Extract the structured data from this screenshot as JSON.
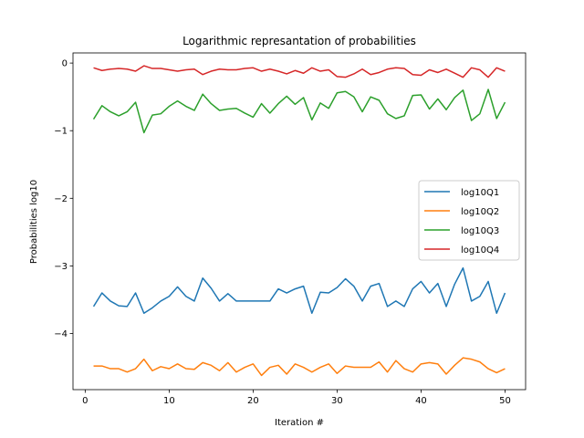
{
  "chart_data": {
    "type": "line",
    "title": "Logarithmic represantation of probabilities",
    "xlabel": "Iteration #",
    "ylabel": "Probabilities log10",
    "xlim": [
      -1.45,
      52.45
    ],
    "ylim": [
      -4.83,
      0.15
    ],
    "xticks": [
      0,
      10,
      20,
      30,
      40,
      50
    ],
    "yticks": [
      0,
      -1,
      -2,
      -3,
      -4
    ],
    "ytick_labels": [
      "0",
      "−1",
      "−2",
      "−3",
      "−4"
    ],
    "grid": false,
    "legend_position": "center-right",
    "x": [
      1,
      2,
      3,
      4,
      5,
      6,
      7,
      8,
      9,
      10,
      11,
      12,
      13,
      14,
      15,
      16,
      17,
      18,
      19,
      20,
      21,
      22,
      23,
      24,
      25,
      26,
      27,
      28,
      29,
      30,
      31,
      32,
      33,
      34,
      35,
      36,
      37,
      38,
      39,
      40,
      41,
      42,
      43,
      44,
      45,
      46,
      47,
      48,
      49,
      50
    ],
    "series": [
      {
        "name": "log10Q1",
        "color": "#1f77b4",
        "values": [
          -3.6,
          -3.4,
          -3.52,
          -3.59,
          -3.6,
          -3.4,
          -3.7,
          -3.62,
          -3.52,
          -3.45,
          -3.31,
          -3.45,
          -3.52,
          -3.18,
          -3.33,
          -3.52,
          -3.41,
          -3.52,
          -3.52,
          -3.52,
          -3.52,
          -3.52,
          -3.34,
          -3.4,
          -3.34,
          -3.3,
          -3.7,
          -3.39,
          -3.4,
          -3.32,
          -3.19,
          -3.3,
          -3.52,
          -3.3,
          -3.26,
          -3.6,
          -3.52,
          -3.6,
          -3.34,
          -3.23,
          -3.4,
          -3.26,
          -3.6,
          -3.27,
          -3.03,
          -3.52,
          -3.45,
          -3.23,
          -3.7,
          -3.4
        ]
      },
      {
        "name": "log10Q2",
        "color": "#ff7f0e",
        "values": [
          -4.48,
          -4.48,
          -4.52,
          -4.52,
          -4.57,
          -4.52,
          -4.38,
          -4.55,
          -4.49,
          -4.52,
          -4.45,
          -4.52,
          -4.53,
          -4.43,
          -4.47,
          -4.55,
          -4.43,
          -4.57,
          -4.5,
          -4.45,
          -4.62,
          -4.5,
          -4.47,
          -4.6,
          -4.45,
          -4.5,
          -4.57,
          -4.5,
          -4.45,
          -4.59,
          -4.48,
          -4.5,
          -4.5,
          -4.5,
          -4.42,
          -4.57,
          -4.4,
          -4.52,
          -4.57,
          -4.45,
          -4.43,
          -4.45,
          -4.6,
          -4.47,
          -4.36,
          -4.38,
          -4.42,
          -4.52,
          -4.58,
          -4.52
        ]
      },
      {
        "name": "log10Q3",
        "color": "#2ca02c",
        "values": [
          -0.83,
          -0.63,
          -0.72,
          -0.78,
          -0.72,
          -0.58,
          -1.03,
          -0.77,
          -0.75,
          -0.64,
          -0.56,
          -0.64,
          -0.7,
          -0.46,
          -0.6,
          -0.7,
          -0.68,
          -0.67,
          -0.74,
          -0.8,
          -0.6,
          -0.74,
          -0.6,
          -0.49,
          -0.61,
          -0.51,
          -0.84,
          -0.59,
          -0.67,
          -0.44,
          -0.42,
          -0.5,
          -0.72,
          -0.5,
          -0.55,
          -0.75,
          -0.82,
          -0.78,
          -0.48,
          -0.47,
          -0.68,
          -0.53,
          -0.69,
          -0.51,
          -0.4,
          -0.85,
          -0.75,
          -0.39,
          -0.82,
          -0.58
        ]
      },
      {
        "name": "log10Q4",
        "color": "#d62728",
        "values": [
          -0.07,
          -0.11,
          -0.09,
          -0.08,
          -0.09,
          -0.12,
          -0.04,
          -0.08,
          -0.08,
          -0.1,
          -0.12,
          -0.1,
          -0.09,
          -0.17,
          -0.12,
          -0.09,
          -0.1,
          -0.1,
          -0.08,
          -0.07,
          -0.12,
          -0.09,
          -0.12,
          -0.16,
          -0.11,
          -0.15,
          -0.07,
          -0.12,
          -0.1,
          -0.2,
          -0.21,
          -0.16,
          -0.09,
          -0.17,
          -0.14,
          -0.09,
          -0.07,
          -0.08,
          -0.17,
          -0.18,
          -0.1,
          -0.14,
          -0.09,
          -0.15,
          -0.21,
          -0.07,
          -0.1,
          -0.21,
          -0.07,
          -0.12
        ]
      }
    ]
  }
}
